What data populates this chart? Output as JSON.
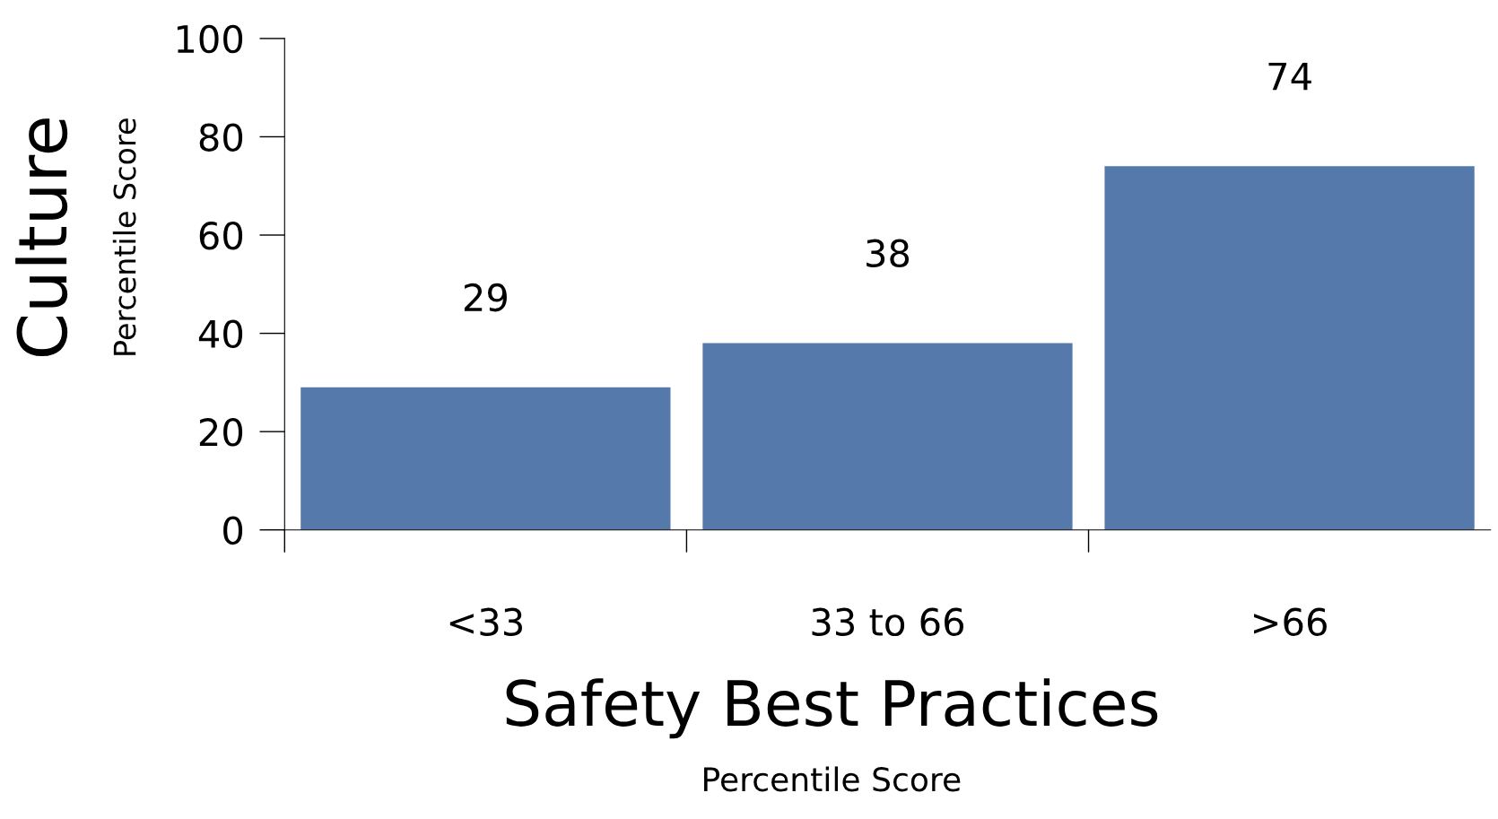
{
  "chart_data": {
    "type": "bar",
    "categories": [
      "<33",
      "33 to 66",
      ">66"
    ],
    "values": [
      29,
      38,
      74
    ],
    "color": "#5479aa",
    "ylim": [
      0,
      100
    ],
    "yticks": [
      0,
      20,
      40,
      60,
      80,
      100
    ],
    "xlabel": "Safety Best Practices\nPercentile Score",
    "ylabel": "Culture\nPercentile Score",
    "data_labels": true,
    "grid": false,
    "legend": false
  }
}
